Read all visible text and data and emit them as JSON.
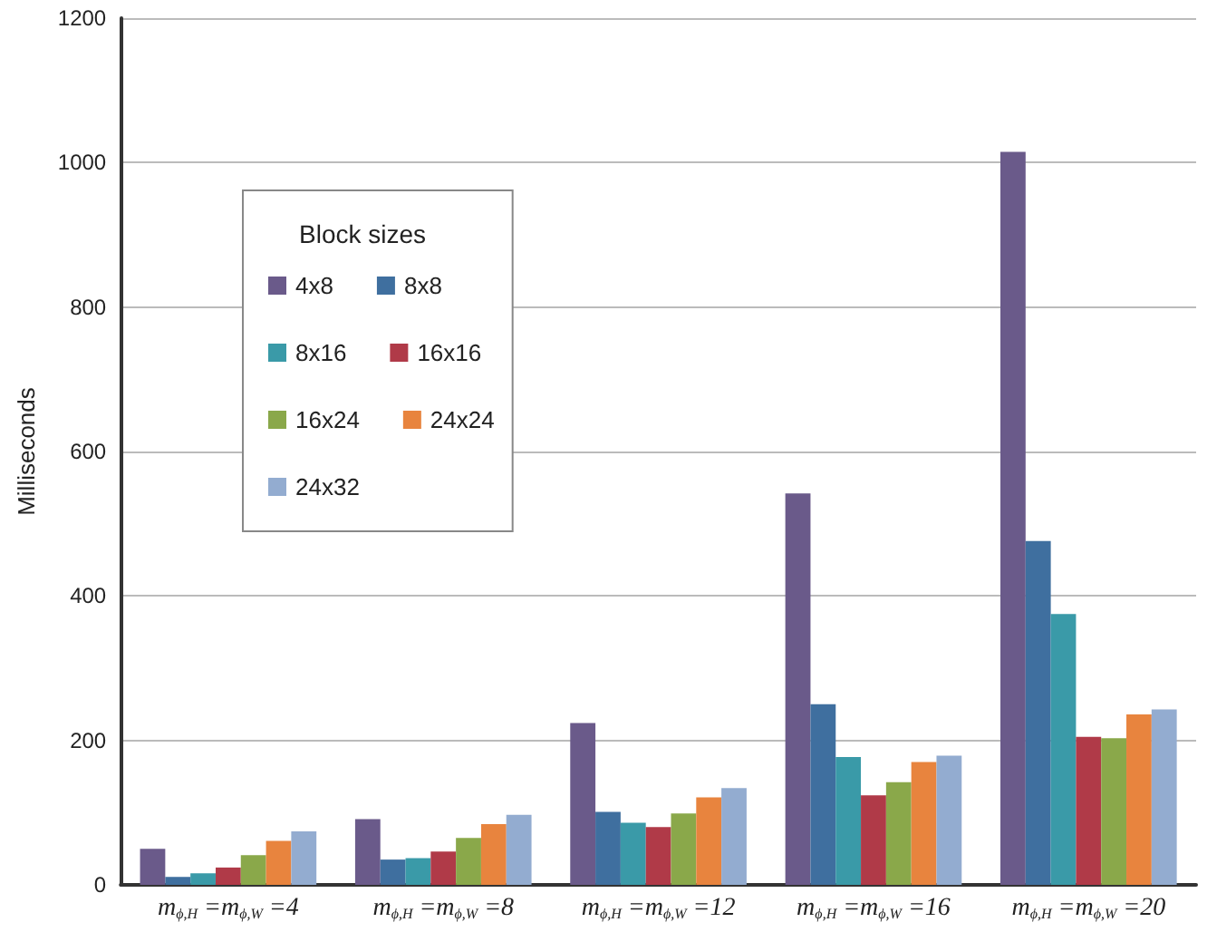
{
  "chart_data": {
    "type": "bar",
    "ylabel": "Milliseconds",
    "legend_title": "Block sizes",
    "legend": "top left",
    "grid": "y",
    "categories": [
      "m$_{ϕ,H}$ =m$_{ϕ,W}$ =4",
      "m$_{ϕ,H}$ =m$_{ϕ,W}$ =8",
      "m$_{ϕ,H}$ =m$_{ϕ,W}$ =12",
      "m$_{ϕ,H}$ =m$_{ϕ,W}$ =16",
      "m$_{ϕ,H}$ =m$_{ϕ,W}$ =20"
    ],
    "ylim": [
      0,
      1200
    ],
    "yticks": [
      0,
      200,
      400,
      600,
      800,
      1000,
      1200
    ],
    "series": [
      {
        "name": "4x8",
        "color": "#6a5a8a",
        "values": [
          50,
          91,
          224,
          542,
          1015
        ]
      },
      {
        "name": "8x8",
        "color": "#3f6f9f",
        "values": [
          11,
          35,
          101,
          250,
          476
        ]
      },
      {
        "name": "8x16",
        "color": "#3a9aa8",
        "values": [
          16,
          37,
          86,
          177,
          375
        ]
      },
      {
        "name": "16x16",
        "color": "#b03a48",
        "values": [
          24,
          46,
          80,
          124,
          205
        ]
      },
      {
        "name": "16x24",
        "color": "#8aa84a",
        "values": [
          41,
          65,
          99,
          142,
          203
        ]
      },
      {
        "name": "24x24",
        "color": "#e8843e",
        "values": [
          61,
          84,
          121,
          170,
          236
        ]
      },
      {
        "name": "24x32",
        "color": "#93acd0",
        "values": [
          74,
          97,
          134,
          179,
          243
        ]
      }
    ]
  }
}
